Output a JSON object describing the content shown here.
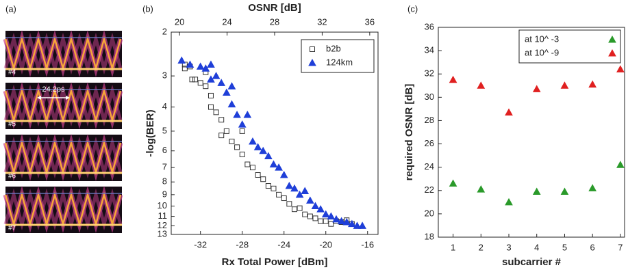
{
  "panel_a": {
    "label": "(a)",
    "eyes": [
      "#4",
      "#5",
      "#6",
      "#7"
    ],
    "annotation": "24.2ps"
  },
  "chart_data": [
    {
      "type": "scatter",
      "panel_label": "(b)",
      "x_label": "Rx Total Power [dBm]",
      "x2_label": "OSNR [dB]",
      "y_label": "-log(BER)",
      "xlim": [
        -34.8,
        -15.0
      ],
      "xticks": [
        -32,
        -28,
        -24,
        -20,
        -16
      ],
      "x2lim": [
        19.3,
        36.7
      ],
      "x2ticks": [
        20,
        24,
        28,
        32,
        36
      ],
      "ylim": [
        2,
        13
      ],
      "yticks": [
        2,
        3,
        4,
        5,
        6,
        7,
        8,
        9,
        10,
        11,
        12,
        13
      ],
      "y_log": true,
      "y_inverted": true,
      "legend": "upper right",
      "series": [
        {
          "name": "b2b",
          "color": "#333333",
          "marker": "square",
          "filled": false,
          "x": [
            -33.5,
            -33.5,
            -33,
            -32.8,
            -32.5,
            -32,
            -31.5,
            -31.5,
            -31,
            -31,
            -30.5,
            -30,
            -30,
            -29.5,
            -29,
            -28.5,
            -28,
            -28,
            -27.5,
            -27,
            -26.5,
            -26,
            -25.5,
            -25,
            -24.5,
            -24,
            -23.5,
            -23,
            -22.5,
            -22,
            -21.5,
            -21,
            -20.5,
            -20,
            -19.5,
            -19,
            -18.5,
            -18,
            -17.5
          ],
          "values": [
            2.7,
            2.8,
            2.75,
            3.1,
            3.1,
            3.2,
            2.9,
            3.3,
            3.6,
            4.0,
            4.2,
            4.5,
            5.2,
            5.0,
            5.5,
            5.8,
            5.0,
            6.2,
            6.8,
            7.0,
            7.5,
            7.8,
            8.3,
            8.5,
            9.0,
            9.3,
            9.8,
            10.3,
            10.2,
            10.8,
            11.0,
            11.2,
            11.5,
            11.5,
            11.8,
            11.5,
            11.6,
            11.4,
            11.8
          ]
        },
        {
          "name": "124km",
          "color": "#1f3fd8",
          "marker": "triangle",
          "filled": true,
          "x": [
            -33.8,
            -33,
            -32,
            -31.5,
            -31,
            -31,
            -30.5,
            -30,
            -29.5,
            -29,
            -29,
            -28.5,
            -28,
            -27.5,
            -27,
            -26.5,
            -26,
            -25.5,
            -25,
            -24.5,
            -24,
            -23.5,
            -23,
            -22.5,
            -22,
            -21.5,
            -21,
            -20.5,
            -20,
            -19.5,
            -19,
            -18.5,
            -18,
            -17.5,
            -17,
            -16.5
          ],
          "values": [
            2.6,
            2.7,
            2.75,
            2.8,
            2.7,
            3.1,
            3.0,
            3.2,
            3.5,
            3.3,
            3.9,
            4.3,
            4.7,
            4.3,
            5.5,
            5.8,
            6.0,
            6.3,
            6.8,
            7.0,
            7.5,
            8.3,
            8.5,
            9.0,
            8.7,
            9.5,
            10.0,
            10.3,
            10.8,
            11.0,
            11.3,
            11.5,
            11.6,
            11.8,
            12.0,
            12.0
          ]
        }
      ]
    },
    {
      "type": "scatter",
      "panel_label": "(c)",
      "x_label": "subcarrier #",
      "y_label": "required OSNR [dB]",
      "xlim": [
        0.47,
        7.15
      ],
      "xticks": [
        1,
        2,
        3,
        4,
        5,
        6,
        7
      ],
      "ylim": [
        18,
        36
      ],
      "yticks": [
        18,
        20,
        22,
        24,
        26,
        28,
        30,
        32,
        34,
        36
      ],
      "legend": "upper right",
      "series": [
        {
          "name": "at 10^ -3",
          "color": "#2a9a2a",
          "marker": "triangle",
          "filled": true,
          "x": [
            1,
            2,
            3,
            4,
            5,
            6,
            7
          ],
          "values": [
            22.6,
            22.1,
            21.0,
            21.9,
            21.9,
            22.2,
            24.2
          ]
        },
        {
          "name": "at 10^ -9",
          "color": "#e02020",
          "marker": "triangle",
          "filled": true,
          "x": [
            1,
            2,
            3,
            4,
            5,
            6,
            7
          ],
          "values": [
            31.5,
            31.0,
            28.7,
            30.7,
            31.0,
            31.1,
            32.4
          ]
        }
      ]
    }
  ]
}
